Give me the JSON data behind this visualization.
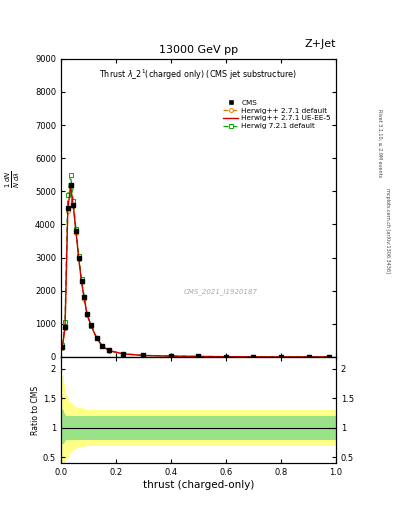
{
  "title_top": "13000 GeV pp",
  "title_right": "Z+Jet",
  "plot_title": "Thrust λ_2¹(charged only) (CMS jet substructure)",
  "watermark": "CMS_2021_I1920187",
  "right_label1": "Rivet 3.1.10, ≥ 2.9M events",
  "right_label2": "mcplots.cern.ch [arXiv:1306.3436]",
  "xlabel": "thrust (charged-only)",
  "xlim": [
    0,
    1
  ],
  "ylim_main": [
    0,
    9000
  ],
  "ylim_ratio": [
    0.4,
    2.2
  ],
  "yticks_main": [
    0,
    1000,
    2000,
    3000,
    4000,
    5000,
    6000,
    7000,
    8000,
    9000
  ],
  "ytick_labels_main": [
    "0",
    "1000",
    "2000",
    "3000",
    "4000",
    "5000",
    "6000",
    "7000",
    "8000",
    "9000"
  ],
  "yticks_ratio": [
    0.5,
    1.0,
    1.5,
    2.0
  ],
  "cms_data_x": [
    0.005,
    0.015,
    0.025,
    0.035,
    0.045,
    0.055,
    0.065,
    0.075,
    0.085,
    0.095,
    0.11,
    0.13,
    0.15,
    0.175,
    0.225,
    0.3,
    0.4,
    0.5,
    0.6,
    0.7,
    0.8,
    0.9,
    0.975
  ],
  "cms_data_y": [
    300,
    900,
    4500,
    5200,
    4600,
    3800,
    3000,
    2300,
    1800,
    1300,
    950,
    580,
    340,
    195,
    95,
    45,
    25,
    15,
    8,
    4,
    1.5,
    0.8,
    0.3
  ],
  "herwig271_default_x": [
    0.005,
    0.015,
    0.025,
    0.035,
    0.045,
    0.055,
    0.065,
    0.075,
    0.085,
    0.095,
    0.11,
    0.13,
    0.15,
    0.175,
    0.225,
    0.3,
    0.4,
    0.5,
    0.6,
    0.7,
    0.8,
    0.9,
    0.975
  ],
  "herwig271_default_y": [
    280,
    880,
    4400,
    5100,
    4550,
    3750,
    2950,
    2250,
    1750,
    1280,
    930,
    565,
    330,
    188,
    92,
    43,
    23,
    13,
    7,
    3.5,
    1.3,
    0.7,
    0.25
  ],
  "herwig271_ueee5_x": [
    0.005,
    0.015,
    0.025,
    0.035,
    0.045,
    0.055,
    0.065,
    0.075,
    0.085,
    0.095,
    0.11,
    0.13,
    0.15,
    0.175,
    0.225,
    0.3,
    0.4,
    0.5,
    0.6,
    0.7,
    0.8,
    0.9,
    0.975
  ],
  "herwig271_ueee5_y": [
    285,
    890,
    4450,
    5150,
    4570,
    3760,
    2960,
    2260,
    1760,
    1285,
    935,
    568,
    332,
    190,
    93,
    44,
    24,
    14,
    7.5,
    3.7,
    1.4,
    0.75,
    0.27
  ],
  "herwig721_default_x": [
    0.005,
    0.015,
    0.025,
    0.035,
    0.045,
    0.055,
    0.065,
    0.075,
    0.085,
    0.095,
    0.11,
    0.13,
    0.15,
    0.175,
    0.225,
    0.3,
    0.4,
    0.5,
    0.6,
    0.7,
    0.8,
    0.9,
    0.975
  ],
  "herwig721_default_y": [
    350,
    1050,
    4900,
    5500,
    4700,
    3850,
    3050,
    2340,
    1800,
    1295,
    945,
    578,
    340,
    194,
    96,
    46,
    26,
    16,
    8.5,
    4.2,
    1.7,
    0.85,
    0.32
  ],
  "color_cms": "#000000",
  "color_h271_default": "#e87e00",
  "color_h271_ueee5": "#cc0000",
  "color_h721_default": "#00aa00",
  "ratio_x": [
    0.0,
    0.005,
    0.01,
    0.015,
    0.02,
    0.025,
    0.03,
    0.035,
    0.04,
    0.045,
    0.05,
    0.06,
    0.07,
    0.08,
    0.09,
    0.1,
    0.12,
    0.14,
    0.16,
    0.2,
    0.25,
    0.35,
    0.5,
    0.7,
    0.9,
    1.0
  ],
  "ratio_green_upper": [
    1.3,
    1.3,
    1.25,
    1.22,
    1.2,
    1.2,
    1.2,
    1.2,
    1.2,
    1.2,
    1.2,
    1.2,
    1.2,
    1.2,
    1.2,
    1.2,
    1.2,
    1.2,
    1.2,
    1.2,
    1.2,
    1.2,
    1.2,
    1.2,
    1.2,
    1.2
  ],
  "ratio_green_lower": [
    0.7,
    0.72,
    0.75,
    0.78,
    0.8,
    0.8,
    0.8,
    0.8,
    0.8,
    0.8,
    0.8,
    0.8,
    0.8,
    0.8,
    0.8,
    0.8,
    0.8,
    0.8,
    0.8,
    0.8,
    0.8,
    0.8,
    0.8,
    0.8,
    0.8,
    0.8
  ],
  "ratio_yellow_upper": [
    2.1,
    1.9,
    1.75,
    1.65,
    1.55,
    1.5,
    1.45,
    1.42,
    1.4,
    1.38,
    1.36,
    1.34,
    1.33,
    1.32,
    1.31,
    1.3,
    1.3,
    1.3,
    1.3,
    1.3,
    1.3,
    1.3,
    1.3,
    1.3,
    1.3,
    1.3
  ],
  "ratio_yellow_lower": [
    0.25,
    0.28,
    0.32,
    0.38,
    0.45,
    0.5,
    0.55,
    0.58,
    0.6,
    0.62,
    0.64,
    0.66,
    0.67,
    0.68,
    0.69,
    0.7,
    0.7,
    0.7,
    0.7,
    0.7,
    0.7,
    0.7,
    0.7,
    0.7,
    0.7,
    0.7
  ]
}
